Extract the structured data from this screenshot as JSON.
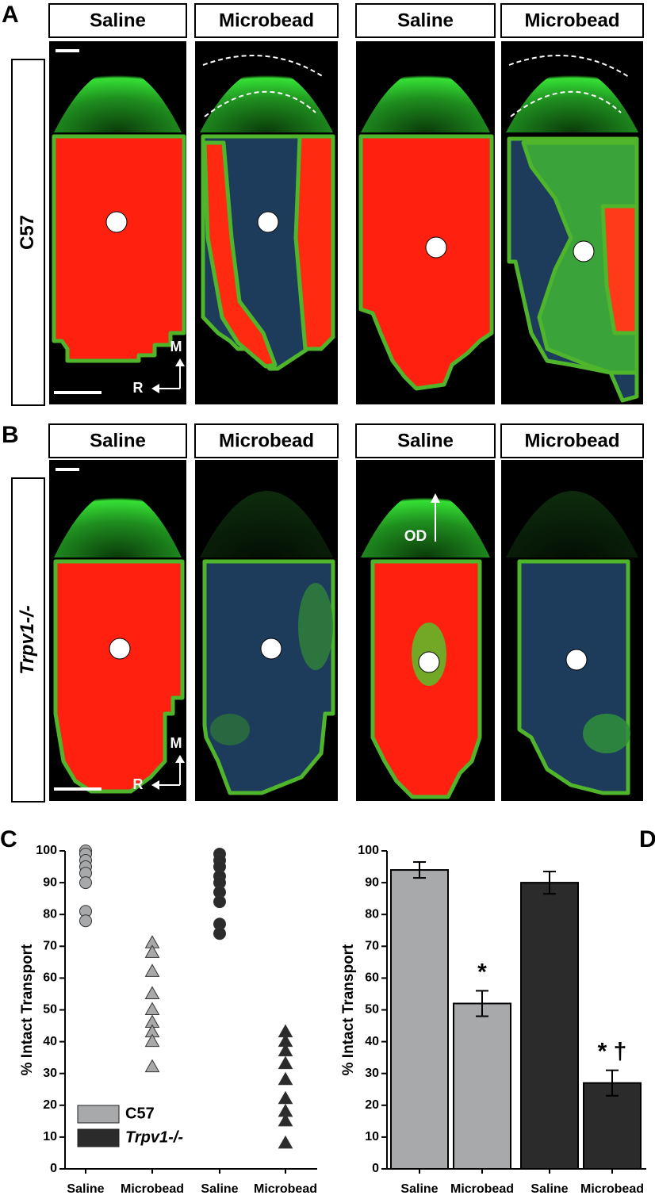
{
  "panels": [
    {
      "letter": "A",
      "headers": [
        "Saline",
        "Microbead",
        "Saline",
        "Microbead"
      ],
      "row_label": "C57",
      "compass": [
        "M",
        "R"
      ]
    },
    {
      "letter": "B",
      "headers": [
        "Saline",
        "Microbead",
        "Saline",
        "Microbead"
      ],
      "row_label": "Trpv1-/-",
      "compass": [
        "M",
        "R"
      ],
      "annotation": "OD"
    }
  ],
  "chart_data": [
    {
      "type": "strip",
      "label": "C",
      "y_label": "% Intact Transport",
      "categories": [
        "Saline",
        "Microbead",
        "Saline",
        "Microbead"
      ],
      "groups": [
        {
          "marker": "circle",
          "color": "#a7a9ab",
          "values": [
            100,
            99,
            97,
            95,
            93,
            90,
            81,
            78
          ]
        },
        {
          "marker": "triangle",
          "color": "#a7a9ab",
          "values": [
            71,
            68,
            62,
            55,
            50,
            46,
            43,
            40,
            32
          ]
        },
        {
          "marker": "circle",
          "color": "#2b2b2b",
          "values": [
            99,
            97,
            95,
            92,
            90,
            87,
            84,
            77,
            74
          ]
        },
        {
          "marker": "triangle",
          "color": "#2b2b2b",
          "values": [
            43,
            40,
            37,
            33,
            28,
            22,
            18,
            15,
            8
          ]
        }
      ],
      "legend": [
        {
          "name": "C57",
          "color": "#a7a9ab"
        },
        {
          "name": "Trpv1-/-",
          "color": "#2b2b2b"
        }
      ],
      "ylim": [
        0,
        100
      ],
      "yticks": [
        0,
        10,
        20,
        30,
        40,
        50,
        60,
        70,
        80,
        90,
        100
      ]
    },
    {
      "type": "bar",
      "label": "D",
      "y_label": "% Intact Transport",
      "categories": [
        "Saline",
        "Microbead",
        "Saline",
        "Microbead"
      ],
      "values": [
        94,
        52,
        90,
        27
      ],
      "errors": [
        2.5,
        4,
        3.5,
        4
      ],
      "colors": [
        "#a7a9ab",
        "#a7a9ab",
        "#2b2b2b",
        "#2b2b2b"
      ],
      "annotations": [
        null,
        "*",
        null,
        "* †"
      ],
      "ylim": [
        0,
        100
      ],
      "yticks": [
        0,
        10,
        20,
        30,
        40,
        50,
        60,
        70,
        80,
        90,
        100
      ]
    }
  ]
}
